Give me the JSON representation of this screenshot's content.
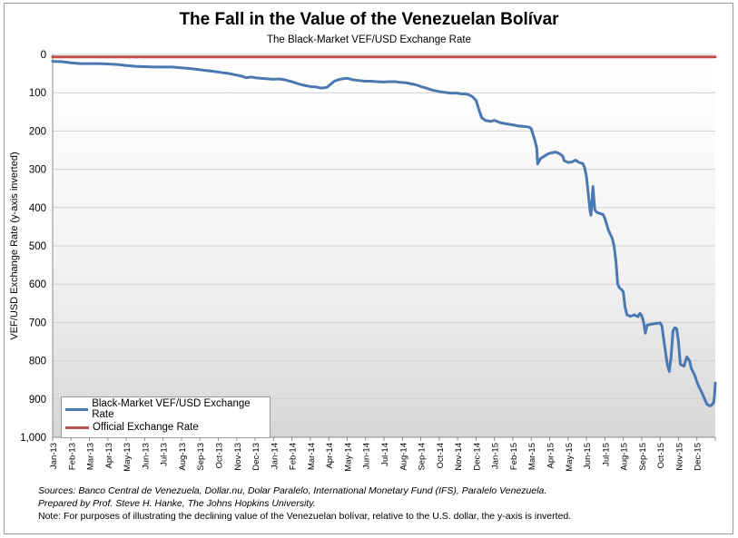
{
  "chart_data": {
    "type": "line",
    "title": "The Fall in the Value of the Venezuelan Bolívar",
    "subtitle": "The Black-Market VEF/USD Exchange Rate",
    "ylabel": "VEF/USD Exchange Rate (y-axis inverted)",
    "xlabel": "",
    "ylim": [
      0,
      1000
    ],
    "y_inverted": true,
    "y_ticks": [
      "0",
      "100",
      "200",
      "300",
      "400",
      "500",
      "600",
      "700",
      "800",
      "900",
      "1,000"
    ],
    "x_tick_labels": [
      "Jan-13",
      "Feb-13",
      "Mar-13",
      "Apr-13",
      "May-13",
      "Jun-13",
      "Jul-13",
      "Aug-13",
      "Sep-13",
      "Oct-13",
      "Nov-13",
      "Dec-13",
      "Jan-14",
      "Feb-14",
      "Mar-14",
      "Apr-14",
      "May-14",
      "Jun-14",
      "Jul-14",
      "Aug-14",
      "Sep-14",
      "Oct-14",
      "Nov-14",
      "Dec-14",
      "Jan-15",
      "Feb-15",
      "Mar-15",
      "Apr-15",
      "May-15",
      "Jun-15",
      "Jul-15",
      "Aug-15",
      "Sep-15",
      "Oct-15",
      "Nov-15",
      "Dec-15"
    ],
    "background": "gradient white-to-light-gray",
    "grid": "horizontal",
    "legend_position": "bottom-left",
    "series": [
      {
        "name": "Black-Market VEF/USD Exchange Rate",
        "color": "#4a78b0",
        "points": [
          [
            0,
            18
          ],
          [
            0.5,
            19
          ],
          [
            1,
            22
          ],
          [
            1.5,
            24
          ],
          [
            2,
            24
          ],
          [
            2.5,
            24
          ],
          [
            3,
            25
          ],
          [
            3.5,
            26
          ],
          [
            4,
            29
          ],
          [
            4.5,
            31
          ],
          [
            5,
            32
          ],
          [
            5.5,
            33
          ],
          [
            6,
            33
          ],
          [
            6.5,
            33
          ],
          [
            7,
            35
          ],
          [
            7.5,
            37
          ],
          [
            8,
            40
          ],
          [
            8.5,
            43
          ],
          [
            9,
            46
          ],
          [
            9.3,
            48
          ],
          [
            9.6,
            50
          ],
          [
            10,
            54
          ],
          [
            10.3,
            57
          ],
          [
            10.5,
            61
          ],
          [
            10.8,
            59
          ],
          [
            11,
            61
          ],
          [
            11.5,
            63
          ],
          [
            12,
            65
          ],
          [
            12.3,
            64
          ],
          [
            12.6,
            66
          ],
          [
            13,
            71
          ],
          [
            13.3,
            76
          ],
          [
            13.6,
            80
          ],
          [
            14,
            84
          ],
          [
            14.3,
            85
          ],
          [
            14.6,
            88
          ],
          [
            14.9,
            86
          ],
          [
            15.1,
            78
          ],
          [
            15.3,
            70
          ],
          [
            15.6,
            65
          ],
          [
            16,
            62
          ],
          [
            16.3,
            66
          ],
          [
            16.6,
            68
          ],
          [
            17,
            70
          ],
          [
            17.3,
            70
          ],
          [
            17.6,
            71
          ],
          [
            18,
            72
          ],
          [
            18.3,
            71
          ],
          [
            18.6,
            71
          ],
          [
            18.9,
            73
          ],
          [
            19.2,
            74
          ],
          [
            19.5,
            77
          ],
          [
            19.8,
            80
          ],
          [
            20,
            84
          ],
          [
            20.3,
            88
          ],
          [
            20.6,
            93
          ],
          [
            21,
            97
          ],
          [
            21.3,
            99
          ],
          [
            21.6,
            101
          ],
          [
            22,
            101
          ],
          [
            22.2,
            103
          ],
          [
            22.4,
            103
          ],
          [
            22.6,
            105
          ],
          [
            22.8,
            110
          ],
          [
            23,
            120
          ],
          [
            23.1,
            135
          ],
          [
            23.2,
            150
          ],
          [
            23.3,
            165
          ],
          [
            23.5,
            172
          ],
          [
            23.8,
            175
          ],
          [
            24,
            172
          ],
          [
            24.3,
            178
          ],
          [
            24.6,
            181
          ],
          [
            25,
            184
          ],
          [
            25.3,
            187
          ],
          [
            25.6,
            188
          ],
          [
            25.9,
            190
          ],
          [
            26,
            194
          ],
          [
            26.1,
            210
          ],
          [
            26.2,
            225
          ],
          [
            26.3,
            245
          ],
          [
            26.35,
            286
          ],
          [
            26.5,
            272
          ],
          [
            26.7,
            266
          ],
          [
            26.9,
            260
          ],
          [
            27.1,
            257
          ],
          [
            27.3,
            255
          ],
          [
            27.5,
            258
          ],
          [
            27.7,
            265
          ],
          [
            27.8,
            278
          ],
          [
            28,
            282
          ],
          [
            28.2,
            281
          ],
          [
            28.4,
            276
          ],
          [
            28.6,
            282
          ],
          [
            28.8,
            285
          ],
          [
            28.9,
            295
          ],
          [
            29,
            320
          ],
          [
            29.1,
            365
          ],
          [
            29.2,
            410
          ],
          [
            29.25,
            420
          ],
          [
            29.35,
            345
          ],
          [
            29.45,
            405
          ],
          [
            29.55,
            412
          ],
          [
            29.7,
            415
          ],
          [
            29.9,
            418
          ],
          [
            30,
            428
          ],
          [
            30.2,
            460
          ],
          [
            30.4,
            480
          ],
          [
            30.5,
            500
          ],
          [
            30.6,
            540
          ],
          [
            30.7,
            600
          ],
          [
            30.8,
            610
          ],
          [
            30.9,
            614
          ],
          [
            31,
            620
          ],
          [
            31.1,
            660
          ],
          [
            31.2,
            680
          ],
          [
            31.4,
            684
          ],
          [
            31.6,
            680
          ],
          [
            31.8,
            685
          ],
          [
            31.9,
            676
          ],
          [
            32,
            682
          ],
          [
            32.1,
            698
          ],
          [
            32.2,
            728
          ],
          [
            32.3,
            707
          ],
          [
            32.5,
            705
          ],
          [
            32.7,
            703
          ],
          [
            32.9,
            702
          ],
          [
            33,
            701
          ],
          [
            33.1,
            710
          ],
          [
            33.3,
            780
          ],
          [
            33.4,
            812
          ],
          [
            33.5,
            828
          ],
          [
            33.6,
            790
          ],
          [
            33.7,
            722
          ],
          [
            33.8,
            714
          ],
          [
            33.9,
            716
          ],
          [
            34,
            750
          ],
          [
            34.1,
            810
          ],
          [
            34.3,
            814
          ],
          [
            34.45,
            790
          ],
          [
            34.6,
            800
          ],
          [
            34.7,
            820
          ],
          [
            34.9,
            840
          ],
          [
            35,
            855
          ],
          [
            35.15,
            872
          ],
          [
            35.3,
            886
          ],
          [
            35.45,
            903
          ],
          [
            35.55,
            914
          ],
          [
            35.7,
            918
          ],
          [
            35.8,
            916
          ],
          [
            35.9,
            910
          ],
          [
            35.95,
            895
          ],
          [
            36,
            858
          ]
        ]
      },
      {
        "name": "Official Exchange Rate",
        "color": "#c0504d",
        "points": [
          [
            0,
            6.3
          ],
          [
            1.2,
            6.3
          ],
          [
            1.3,
            6.3
          ],
          [
            36,
            6.3
          ]
        ]
      }
    ]
  },
  "notes": {
    "sources": "Sources: Banco Central de Venezuela, Dollar.nu, Dolar Paralelo, International Monetary Fund (IFS), Paralelo Venezuela.",
    "prepared_by": "Prepared by Prof. Steve H. Hanke, The Johns Hopkins University.",
    "note": "Note: For purposes of illustrating the declining value of the Venezuelan bolívar, relative to the U.S. dollar, the y-axis is inverted."
  }
}
